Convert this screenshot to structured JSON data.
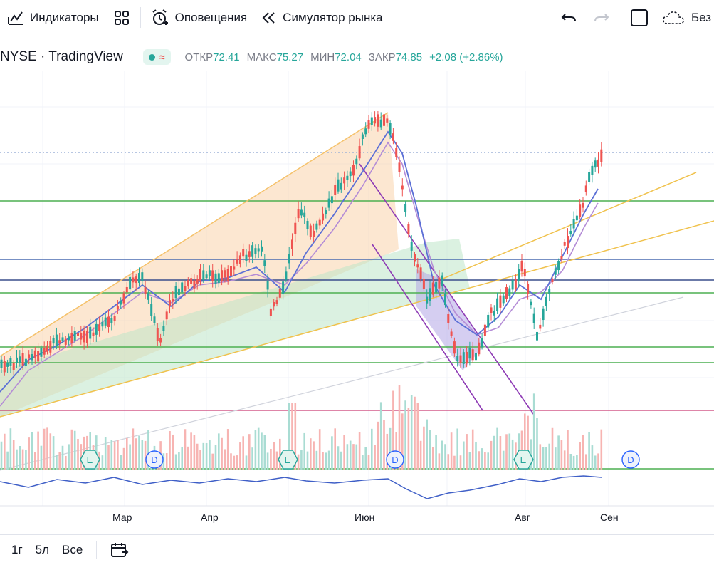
{
  "toolbar": {
    "indicators_label": "Индикаторы",
    "alerts_label": "Оповещения",
    "replay_label": "Симулятор рынка",
    "cut_label": "Без"
  },
  "header": {
    "symbol": "NYSE · TradingView",
    "ohlc": [
      {
        "label": "ОТКР",
        "value": "72.41"
      },
      {
        "label": "МАКС",
        "value": "75.27"
      },
      {
        "label": "МИН",
        "value": "72.04"
      },
      {
        "label": "ЗАКР",
        "value": "74.85"
      }
    ],
    "change": "+2.08 (+2.86%)"
  },
  "chart_data": {
    "type": "candlestick",
    "x_ticks": [
      "Мар",
      "Апр",
      "Июн",
      "Авг",
      "Сен"
    ],
    "events": [
      "E",
      "D",
      "E",
      "D",
      "E",
      "D"
    ],
    "colors": {
      "up": "#26a69a",
      "down": "#ef5350",
      "ma_fast": "#5b6fd6",
      "ma_slow": "#b48cd6"
    }
  },
  "bottombar": {
    "ranges": [
      "1г",
      "5л",
      "Все"
    ]
  }
}
